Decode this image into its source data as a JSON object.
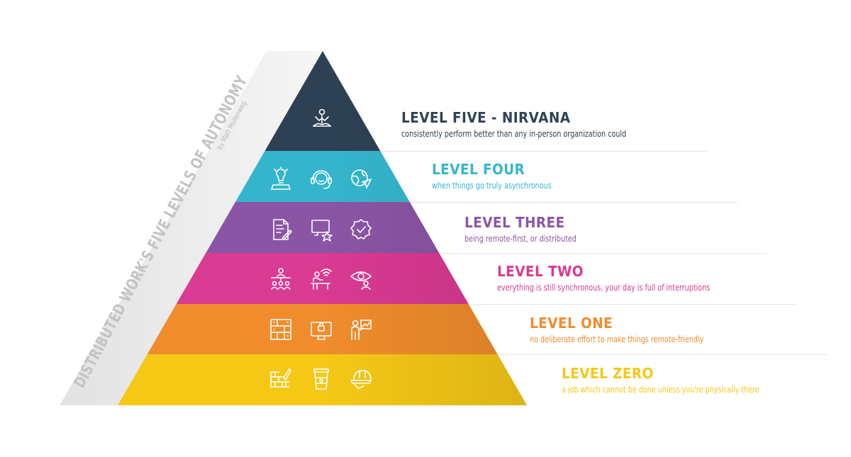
{
  "side_title": {
    "main": "DISTRIBUTED WORK'S FIVE LEVELS OF AUTONOMY",
    "byline": "by Matt Mullenweg"
  },
  "levels": [
    {
      "title": "LEVEL FIVE - NIRVANA",
      "description": "consistently perform better than any in-person organization could",
      "color": "#2e4154",
      "icons": [
        "meditation-icon"
      ]
    },
    {
      "title": "LEVEL FOUR",
      "description": "when things go truly asynchronous",
      "color": "#35b5cd",
      "icons": [
        "lightbulb-laptop-icon",
        "headset-icon",
        "globe-send-icon"
      ]
    },
    {
      "title": "LEVEL THREE",
      "description": "being remote-first, or distributed",
      "color": "#8b55a5",
      "icons": [
        "document-edit-icon",
        "monitor-star-icon",
        "badge-check-icon"
      ]
    },
    {
      "title": "LEVEL TWO",
      "description": "everything is still synchronous, your day is full of interruptions",
      "color": "#d93a92",
      "icons": [
        "team-meeting-icon",
        "desk-wifi-icon",
        "eye-person-icon"
      ]
    },
    {
      "title": "LEVEL ONE",
      "description": "no deliberate effort to make things remote-friendly",
      "color": "#f08c2c",
      "icons": [
        "office-building-icon",
        "monitor-lock-icon",
        "presenter-chart-icon"
      ]
    },
    {
      "title": "LEVEL ZERO",
      "description": "a job which cannot be done unless you're physically there",
      "color": "#f5c816",
      "icons": [
        "brick-wall-trowel-icon",
        "coffee-cup-icon",
        "hard-hat-icon"
      ]
    }
  ]
}
